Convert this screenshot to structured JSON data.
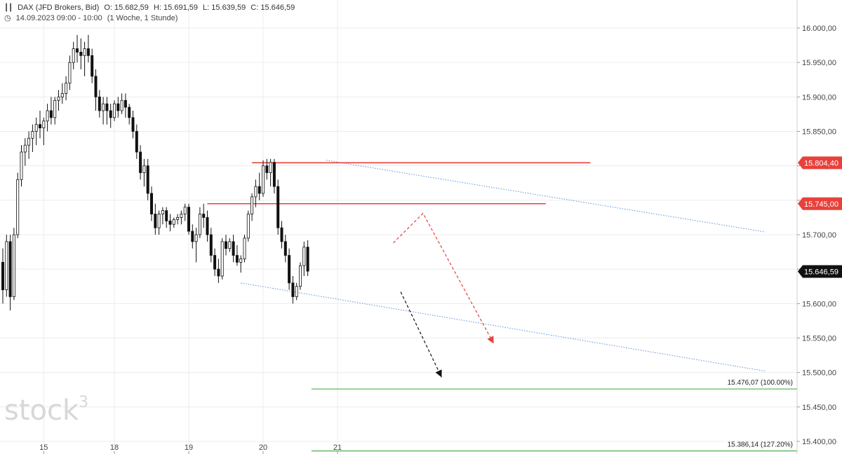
{
  "header": {
    "instrument": "DAX (JFD Brokers, Bid)",
    "ohlc": {
      "o": "O: 15.682,59",
      "h": "H: 15.691,59",
      "l": "L: 15.639,59",
      "c": "C: 15.646,59"
    },
    "datetime": "14.09.2023 09:00 - 10:00",
    "range": "(1 Woche, 1 Stunde)"
  },
  "watermark": {
    "text": "stock",
    "sup": "3"
  },
  "chart_data": {
    "type": "candlestick",
    "ylim": [
      15380,
      16020
    ],
    "y_ticks": [
      {
        "v": 16000,
        "label": "16.000,00"
      },
      {
        "v": 15950,
        "label": "15.950,00"
      },
      {
        "v": 15900,
        "label": "15.900,00"
      },
      {
        "v": 15850,
        "label": "15.850,00"
      },
      {
        "v": 15800,
        "label": "15.800,00"
      },
      {
        "v": 15750,
        "label": "15.750,00"
      },
      {
        "v": 15700,
        "label": "15.700,00"
      },
      {
        "v": 15650,
        "label": "15.650,00"
      },
      {
        "v": 15600,
        "label": "15.600,00"
      },
      {
        "v": 15550,
        "label": "15.550,00"
      },
      {
        "v": 15500,
        "label": "15.500,00"
      },
      {
        "v": 15450,
        "label": "15.450,00"
      },
      {
        "v": 15400,
        "label": "15.400,00"
      }
    ],
    "x_ticks": [
      {
        "label": "15",
        "bar": 11
      },
      {
        "label": "18",
        "bar": 30
      },
      {
        "label": "19",
        "bar": 50
      },
      {
        "label": "20",
        "bar": 70
      },
      {
        "label": "21",
        "bar": 90
      }
    ],
    "last_price": {
      "v": 15646.59,
      "label": "15.646,59"
    },
    "resistance_levels": [
      {
        "v": 15804.4,
        "label": "15.804,40",
        "from_bar": 67,
        "to_bar": 158
      },
      {
        "v": 15745.0,
        "label": "15.745,00",
        "from_bar": 55,
        "to_bar": 146
      }
    ],
    "fib_targets": [
      {
        "v": 15476.07,
        "label": "15.476,07 (100.00%)",
        "from_bar": 83
      },
      {
        "v": 15386.14,
        "label": "15.386,14 (127.20%)",
        "from_bar": 83
      }
    ],
    "trend_channel": [
      {
        "from": [
          64,
          15630
        ],
        "to": [
          205,
          15502
        ]
      },
      {
        "from": [
          87,
          15808
        ],
        "to": [
          205,
          15704
        ]
      }
    ],
    "scenario_arrows": [
      {
        "points": [
          [
            105,
            15688
          ],
          [
            113,
            15731
          ],
          [
            132,
            15542
          ]
        ],
        "color": "#e8413b"
      },
      {
        "points": [
          [
            107,
            15617
          ],
          [
            118,
            15493
          ]
        ],
        "color": "#111111"
      }
    ],
    "candles": [
      [
        15660,
        15680,
        15600,
        15620
      ],
      [
        15620,
        15700,
        15610,
        15690
      ],
      [
        15690,
        15700,
        15590,
        15610
      ],
      [
        15610,
        15710,
        15605,
        15700
      ],
      [
        15700,
        15790,
        15695,
        15780
      ],
      [
        15780,
        15830,
        15770,
        15820
      ],
      [
        15820,
        15840,
        15800,
        15830
      ],
      [
        15830,
        15850,
        15810,
        15840
      ],
      [
        15840,
        15860,
        15820,
        15850
      ],
      [
        15850,
        15870,
        15830,
        15860
      ],
      [
        15860,
        15880,
        15840,
        15855
      ],
      [
        15855,
        15870,
        15830,
        15865
      ],
      [
        15865,
        15890,
        15850,
        15880
      ],
      [
        15880,
        15900,
        15860,
        15870
      ],
      [
        15870,
        15900,
        15860,
        15895
      ],
      [
        15895,
        15910,
        15880,
        15900
      ],
      [
        15900,
        15920,
        15890,
        15905
      ],
      [
        15905,
        15930,
        15895,
        15920
      ],
      [
        15920,
        15960,
        15910,
        15950
      ],
      [
        15950,
        15980,
        15940,
        15970
      ],
      [
        15970,
        15990,
        15950,
        15965
      ],
      [
        15965,
        15985,
        15940,
        15960
      ],
      [
        15960,
        15980,
        15930,
        15970
      ],
      [
        15970,
        15990,
        15950,
        15960
      ],
      [
        15960,
        15970,
        15920,
        15930
      ],
      [
        15930,
        15940,
        15880,
        15900
      ],
      [
        15900,
        15910,
        15870,
        15880
      ],
      [
        15880,
        15900,
        15860,
        15890
      ],
      [
        15890,
        15900,
        15860,
        15880
      ],
      [
        15880,
        15890,
        15855,
        15870
      ],
      [
        15870,
        15895,
        15865,
        15890
      ],
      [
        15890,
        15900,
        15870,
        15880
      ],
      [
        15880,
        15905,
        15875,
        15895
      ],
      [
        15895,
        15905,
        15870,
        15885
      ],
      [
        15885,
        15890,
        15860,
        15870
      ],
      [
        15870,
        15880,
        15840,
        15850
      ],
      [
        15850,
        15860,
        15810,
        15820
      ],
      [
        15820,
        15830,
        15780,
        15790
      ],
      [
        15790,
        15810,
        15770,
        15800
      ],
      [
        15800,
        15810,
        15750,
        15760
      ],
      [
        15760,
        15770,
        15720,
        15730
      ],
      [
        15730,
        15745,
        15700,
        15710
      ],
      [
        15710,
        15735,
        15700,
        15730
      ],
      [
        15730,
        15740,
        15715,
        15735
      ],
      [
        15735,
        15740,
        15710,
        15720
      ],
      [
        15720,
        15730,
        15705,
        15715
      ],
      [
        15715,
        15725,
        15710,
        15722
      ],
      [
        15722,
        15730,
        15715,
        15725
      ],
      [
        15725,
        15735,
        15715,
        15730
      ],
      [
        15730,
        15745,
        15720,
        15740
      ],
      [
        15740,
        15745,
        15700,
        15705
      ],
      [
        15705,
        15715,
        15680,
        15690
      ],
      [
        15690,
        15710,
        15660,
        15700
      ],
      [
        15700,
        15740,
        15695,
        15730
      ],
      [
        15730,
        15745,
        15710,
        15725
      ],
      [
        15725,
        15735,
        15690,
        15700
      ],
      [
        15700,
        15710,
        15660,
        15670
      ],
      [
        15670,
        15680,
        15640,
        15650
      ],
      [
        15650,
        15665,
        15630,
        15640
      ],
      [
        15640,
        15695,
        15635,
        15690
      ],
      [
        15690,
        15700,
        15670,
        15680
      ],
      [
        15680,
        15695,
        15675,
        15690
      ],
      [
        15690,
        15700,
        15660,
        15670
      ],
      [
        15670,
        15685,
        15655,
        15660
      ],
      [
        15660,
        15670,
        15645,
        15665
      ],
      [
        15665,
        15700,
        15660,
        15695
      ],
      [
        15695,
        15735,
        15690,
        15730
      ],
      [
        15730,
        15760,
        15720,
        15755
      ],
      [
        15755,
        15780,
        15740,
        15770
      ],
      [
        15770,
        15790,
        15750,
        15760
      ],
      [
        15760,
        15808,
        15755,
        15800
      ],
      [
        15800,
        15810,
        15780,
        15790
      ],
      [
        15790,
        15810,
        15770,
        15805
      ],
      [
        15805,
        15810,
        15760,
        15770
      ],
      [
        15770,
        15780,
        15700,
        15710
      ],
      [
        15710,
        15720,
        15680,
        15690
      ],
      [
        15690,
        15700,
        15660,
        15670
      ],
      [
        15670,
        15680,
        15620,
        15630
      ],
      [
        15630,
        15640,
        15600,
        15610
      ],
      [
        15610,
        15630,
        15605,
        15625
      ],
      [
        15625,
        15660,
        15620,
        15655
      ],
      [
        15655,
        15690,
        15640,
        15682
      ],
      [
        15682,
        15692,
        15640,
        15647
      ]
    ]
  }
}
